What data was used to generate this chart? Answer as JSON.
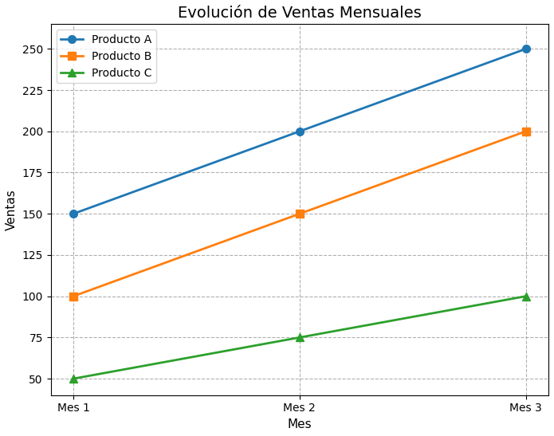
{
  "title": "Evolución de Ventas Mensuales",
  "xlabel": "Mes",
  "ylabel": "Ventas",
  "x_labels": [
    "Mes 1",
    "Mes 2",
    "Mes 3"
  ],
  "series": [
    {
      "name": "Producto A",
      "values": [
        150,
        200,
        250
      ],
      "color": "#1f77b4",
      "marker": "o"
    },
    {
      "name": "Producto B",
      "values": [
        100,
        150,
        200
      ],
      "color": "#ff7f0e",
      "marker": "s"
    },
    {
      "name": "Producto C",
      "values": [
        50,
        75,
        100
      ],
      "color": "#2ca02c",
      "marker": "^"
    }
  ],
  "ylim": [
    40,
    265
  ],
  "grid": true,
  "grid_style": "--",
  "grid_color": "#b0b0b0",
  "title_fontsize": 14,
  "axis_label_fontsize": 11,
  "tick_fontsize": 10,
  "legend_fontsize": 10,
  "linewidth": 2,
  "markersize": 7,
  "background_color": "#ffffff"
}
